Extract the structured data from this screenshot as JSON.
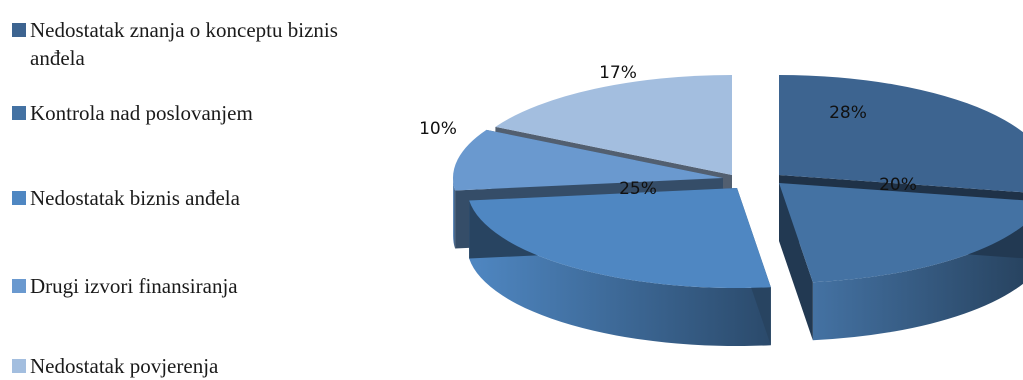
{
  "chart_data": {
    "type": "pie",
    "title": "",
    "three_d": true,
    "exploded": true,
    "legend_placement": "left",
    "series": [
      {
        "name": "Nedostatak znanja o konceptu biznis anđela",
        "value": 28,
        "label": "28%",
        "color": "#3d6490"
      },
      {
        "name": "Kontrola nad poslovanjem",
        "value": 20,
        "label": "20%",
        "color": "#4472a3"
      },
      {
        "name": "Nedostatak biznis anđela",
        "value": 25,
        "label": "25%",
        "color": "#4f87c2"
      },
      {
        "name": "Drugi izvori finansiranja",
        "value": 10,
        "label": "10%",
        "color": "#6a99cf"
      },
      {
        "name": "Nedostatak povjerenja",
        "value": 17,
        "label": "17%",
        "color": "#a3bedf"
      }
    ]
  }
}
